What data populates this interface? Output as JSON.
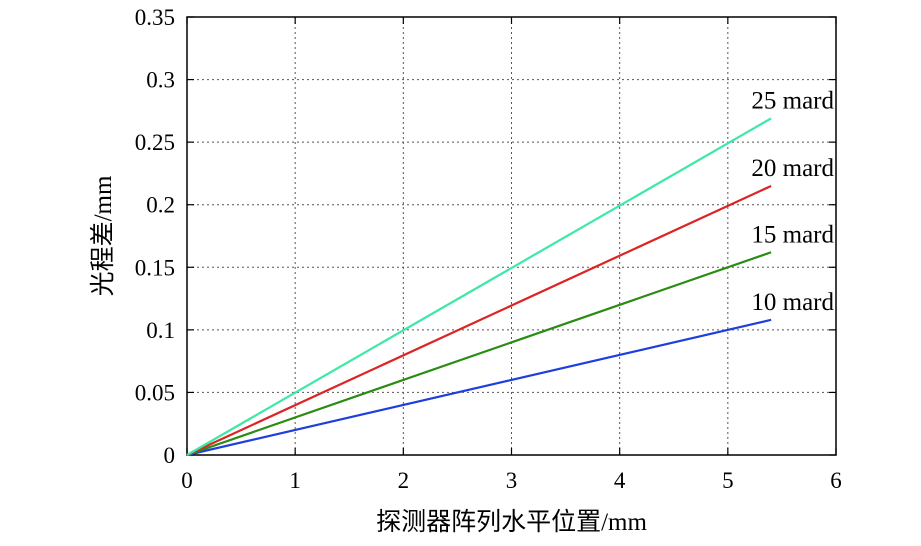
{
  "chart_data": {
    "type": "line",
    "title": "",
    "xlabel": "探测器阵列水平位置/mm",
    "ylabel": "光程差/mm",
    "xlim": [
      0,
      6
    ],
    "ylim": [
      0,
      0.35
    ],
    "xticks": [
      0,
      1,
      2,
      3,
      4,
      5,
      6
    ],
    "yticks": [
      0,
      0.05,
      0.1,
      0.15,
      0.2,
      0.25,
      0.3,
      0.35
    ],
    "xtick_labels": [
      "0",
      "1",
      "2",
      "3",
      "4",
      "5",
      "6"
    ],
    "ytick_labels": [
      "0",
      "0.05",
      "0.1",
      "0.15",
      "0.2",
      "0.25",
      "0.3",
      "0.35"
    ],
    "grid": true,
    "series": [
      {
        "name": "10 mard",
        "color": "#1f3fdc",
        "x": [
          0,
          5.4
        ],
        "y": [
          0,
          0.108
        ]
      },
      {
        "name": "15 mard",
        "color": "#2a8c12",
        "x": [
          0,
          5.4
        ],
        "y": [
          0,
          0.162
        ]
      },
      {
        "name": "20 mard",
        "color": "#dc2424",
        "x": [
          0,
          5.4
        ],
        "y": [
          0,
          0.215
        ]
      },
      {
        "name": "25 mard",
        "color": "#3ee8a6",
        "x": [
          0,
          5.4
        ],
        "y": [
          0,
          0.269
        ]
      }
    ]
  }
}
